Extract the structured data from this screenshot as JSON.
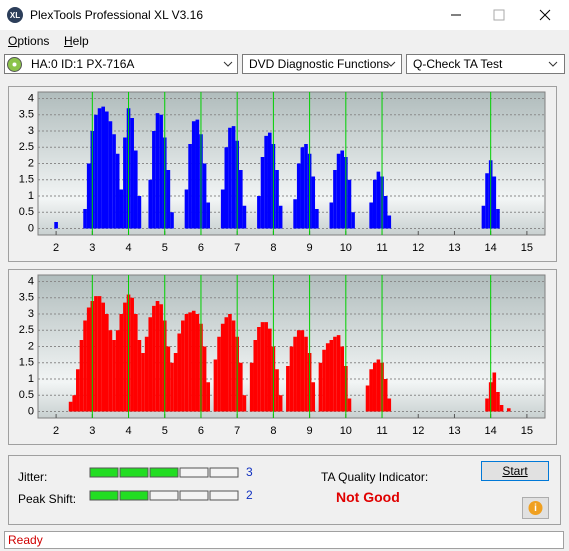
{
  "window": {
    "title": "PlexTools Professional XL V3.16"
  },
  "menu": [
    "Options",
    "Help"
  ],
  "toolbar": {
    "drive": "HA:0 ID:1  PX-716A",
    "function": "DVD Diagnostic Functions",
    "test": "Q-Check TA Test"
  },
  "chart_data": [
    {
      "type": "bar",
      "color": "#0000ff",
      "marker_color": "#00d000",
      "grid": true,
      "x": [
        2.0,
        2.8,
        2.9,
        3.0,
        3.1,
        3.2,
        3.3,
        3.4,
        3.5,
        3.6,
        3.7,
        3.8,
        3.9,
        4.0,
        4.1,
        4.2,
        4.3,
        4.6,
        4.7,
        4.8,
        4.9,
        5.0,
        5.1,
        5.2,
        5.6,
        5.7,
        5.8,
        5.9,
        6.0,
        6.1,
        6.2,
        6.6,
        6.7,
        6.8,
        6.9,
        7.0,
        7.1,
        7.2,
        7.6,
        7.7,
        7.8,
        7.9,
        8.0,
        8.1,
        8.2,
        8.6,
        8.7,
        8.8,
        8.9,
        9.0,
        9.1,
        9.2,
        9.6,
        9.7,
        9.8,
        9.9,
        10.0,
        10.1,
        10.2,
        10.7,
        10.8,
        10.9,
        11.0,
        11.1,
        11.2,
        13.8,
        13.9,
        14.0,
        14.1,
        14.2
      ],
      "values": [
        0.2,
        0.6,
        2.0,
        3.0,
        3.5,
        3.7,
        3.75,
        3.6,
        3.3,
        2.9,
        2.3,
        1.2,
        2.8,
        3.7,
        3.4,
        2.4,
        1.0,
        1.5,
        3.0,
        3.55,
        3.5,
        2.8,
        1.8,
        0.5,
        1.2,
        2.6,
        3.3,
        3.35,
        2.9,
        2.0,
        0.8,
        1.2,
        2.5,
        3.1,
        3.15,
        2.7,
        1.8,
        0.7,
        1.0,
        2.2,
        2.85,
        2.95,
        2.6,
        1.8,
        0.7,
        0.9,
        2.0,
        2.5,
        2.6,
        2.3,
        1.6,
        0.6,
        0.8,
        1.8,
        2.3,
        2.4,
        2.2,
        1.5,
        0.5,
        0.8,
        1.5,
        1.75,
        1.6,
        1.0,
        0.4,
        0.7,
        1.7,
        2.1,
        1.6,
        0.6
      ],
      "xlim": [
        1.5,
        15.5
      ],
      "xticks": [
        2,
        3,
        4,
        5,
        6,
        7,
        8,
        9,
        10,
        11,
        12,
        13,
        14,
        15
      ],
      "ylim": [
        -0.2,
        4.2
      ],
      "yticks": [
        0,
        0.5,
        1,
        1.5,
        2,
        2.5,
        3,
        3.5,
        4
      ],
      "markers": [
        3,
        4,
        5,
        6,
        7,
        8,
        9,
        10,
        11,
        14
      ]
    },
    {
      "type": "bar",
      "color": "#ff0000",
      "marker_color": "#00d000",
      "grid": true,
      "x": [
        2.4,
        2.5,
        2.6,
        2.7,
        2.8,
        2.9,
        3.0,
        3.1,
        3.2,
        3.3,
        3.4,
        3.5,
        3.6,
        3.7,
        3.8,
        3.9,
        4.0,
        4.1,
        4.2,
        4.3,
        4.4,
        4.5,
        4.6,
        4.7,
        4.8,
        4.9,
        5.0,
        5.1,
        5.2,
        5.3,
        5.4,
        5.5,
        5.6,
        5.7,
        5.8,
        5.9,
        6.0,
        6.1,
        6.2,
        6.4,
        6.5,
        6.6,
        6.7,
        6.8,
        6.9,
        7.0,
        7.1,
        7.2,
        7.4,
        7.5,
        7.6,
        7.7,
        7.8,
        7.9,
        8.0,
        8.1,
        8.2,
        8.4,
        8.5,
        8.6,
        8.7,
        8.8,
        8.9,
        9.0,
        9.1,
        9.3,
        9.4,
        9.5,
        9.6,
        9.7,
        9.8,
        9.9,
        10.0,
        10.1,
        10.6,
        10.7,
        10.8,
        10.9,
        11.0,
        11.1,
        11.2,
        13.9,
        14.0,
        14.1,
        14.2,
        14.3,
        14.5
      ],
      "values": [
        0.3,
        0.5,
        1.3,
        2.2,
        2.8,
        3.2,
        3.4,
        3.55,
        3.55,
        3.35,
        3.0,
        2.5,
        2.2,
        2.5,
        3.0,
        3.35,
        3.6,
        3.5,
        3.0,
        2.2,
        1.8,
        2.3,
        2.9,
        3.25,
        3.4,
        3.3,
        2.8,
        2.0,
        1.5,
        1.8,
        2.4,
        2.8,
        3.0,
        3.05,
        3.1,
        3.0,
        2.7,
        2.0,
        0.9,
        1.6,
        2.3,
        2.7,
        2.9,
        3.0,
        2.8,
        2.3,
        1.5,
        0.5,
        1.5,
        2.2,
        2.6,
        2.75,
        2.75,
        2.55,
        2.0,
        1.3,
        0.5,
        1.4,
        2.0,
        2.3,
        2.5,
        2.5,
        2.3,
        1.8,
        0.9,
        1.5,
        1.9,
        2.1,
        2.2,
        2.3,
        2.35,
        2.0,
        1.4,
        0.4,
        0.8,
        1.3,
        1.5,
        1.6,
        1.5,
        1.0,
        0.4,
        0.4,
        0.9,
        1.2,
        0.6,
        0.2,
        0.1
      ],
      "xlim": [
        1.5,
        15.5
      ],
      "xticks": [
        2,
        3,
        4,
        5,
        6,
        7,
        8,
        9,
        10,
        11,
        12,
        13,
        14,
        15
      ],
      "ylim": [
        -0.2,
        4.2
      ],
      "yticks": [
        0,
        0.5,
        1,
        1.5,
        2,
        2.5,
        3,
        3.5,
        4
      ],
      "markers": [
        3,
        4,
        5,
        6,
        7,
        8,
        9,
        10,
        11,
        14
      ]
    }
  ],
  "indicators": {
    "jitter": {
      "label": "Jitter:",
      "value": 3
    },
    "peak_shift": {
      "label": "Peak Shift:",
      "value": 2
    },
    "ta_quality": {
      "label": "TA Quality Indicator:",
      "result": "Not Good"
    }
  },
  "buttons": {
    "start": "Start"
  },
  "status": "Ready"
}
